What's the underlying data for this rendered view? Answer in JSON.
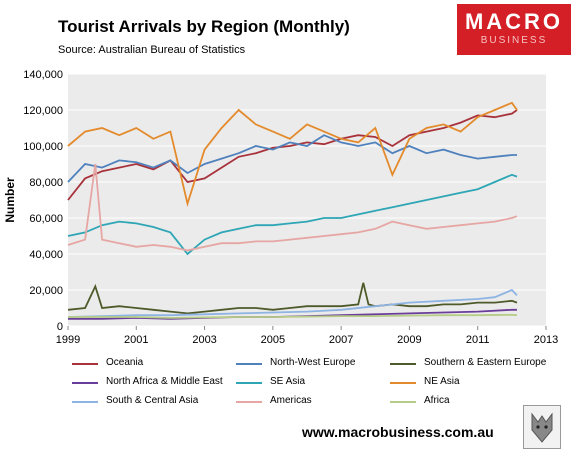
{
  "title": "Tourist Arrivals by Region (Monthly)",
  "source": "Source: Australian Bureau of Statistics",
  "logo": {
    "big": "MACRO",
    "small": "BUSINESS"
  },
  "footer_url": "www.macrobusiness.com.au",
  "colors": {
    "plot_bg": "#ebebeb",
    "gridline": "#ffffff",
    "logo_red": "#d41f26"
  },
  "chart_data": {
    "type": "line",
    "title": "Tourist Arrivals by Region (Monthly)",
    "ylabel": "Number",
    "xlabel": "",
    "xlim": [
      1999,
      2013
    ],
    "ylim": [
      0,
      140000
    ],
    "x_ticks": [
      "1999",
      "2001",
      "2003",
      "2005",
      "2007",
      "2009",
      "2011",
      "2013"
    ],
    "y_ticks": [
      "0",
      "20,000",
      "40,000",
      "60,000",
      "80,000",
      "100,000",
      "120,000",
      "140,000"
    ],
    "grid": true,
    "legend_position": "bottom",
    "series": [
      {
        "name": "Oceania",
        "color": "#a8323b",
        "points": [
          [
            1999.0,
            70000
          ],
          [
            1999.5,
            82000
          ],
          [
            2000.0,
            86000
          ],
          [
            2000.5,
            88000
          ],
          [
            2001.0,
            90000
          ],
          [
            2001.5,
            87000
          ],
          [
            2002.0,
            92000
          ],
          [
            2002.5,
            80000
          ],
          [
            2003.0,
            82000
          ],
          [
            2003.5,
            88000
          ],
          [
            2004.0,
            94000
          ],
          [
            2004.5,
            96000
          ],
          [
            2005.0,
            99000
          ],
          [
            2005.5,
            100000
          ],
          [
            2006.0,
            102000
          ],
          [
            2006.5,
            101000
          ],
          [
            2007.0,
            104000
          ],
          [
            2007.5,
            106000
          ],
          [
            2008.0,
            105000
          ],
          [
            2008.5,
            100000
          ],
          [
            2009.0,
            106000
          ],
          [
            2009.5,
            108000
          ],
          [
            2010.0,
            110000
          ],
          [
            2010.5,
            113000
          ],
          [
            2011.0,
            117000
          ],
          [
            2011.5,
            116000
          ],
          [
            2012.0,
            118000
          ],
          [
            2012.15,
            120000
          ]
        ]
      },
      {
        "name": "North-West Europe",
        "color": "#4f81bd",
        "points": [
          [
            1999.0,
            80000
          ],
          [
            1999.5,
            90000
          ],
          [
            2000.0,
            88000
          ],
          [
            2000.5,
            92000
          ],
          [
            2001.0,
            91000
          ],
          [
            2001.5,
            88000
          ],
          [
            2002.0,
            92000
          ],
          [
            2002.5,
            85000
          ],
          [
            2003.0,
            90000
          ],
          [
            2003.5,
            93000
          ],
          [
            2004.0,
            96000
          ],
          [
            2004.5,
            100000
          ],
          [
            2005.0,
            98000
          ],
          [
            2005.5,
            102000
          ],
          [
            2006.0,
            100000
          ],
          [
            2006.5,
            106000
          ],
          [
            2007.0,
            102000
          ],
          [
            2007.5,
            100000
          ],
          [
            2008.0,
            102000
          ],
          [
            2008.5,
            96000
          ],
          [
            2009.0,
            100000
          ],
          [
            2009.5,
            96000
          ],
          [
            2010.0,
            98000
          ],
          [
            2010.5,
            95000
          ],
          [
            2011.0,
            93000
          ],
          [
            2011.5,
            94000
          ],
          [
            2012.0,
            95000
          ],
          [
            2012.15,
            95000
          ]
        ]
      },
      {
        "name": "Southern & Eastern Europe",
        "color": "#4e5a2a",
        "points": [
          [
            1999.0,
            9000
          ],
          [
            1999.5,
            10000
          ],
          [
            1999.8,
            22000
          ],
          [
            2000.0,
            10000
          ],
          [
            2000.5,
            11000
          ],
          [
            2001.0,
            10000
          ],
          [
            2001.5,
            9000
          ],
          [
            2002.0,
            8000
          ],
          [
            2002.5,
            7000
          ],
          [
            2003.0,
            8000
          ],
          [
            2003.5,
            9000
          ],
          [
            2004.0,
            10000
          ],
          [
            2004.5,
            10000
          ],
          [
            2005.0,
            9000
          ],
          [
            2005.5,
            10000
          ],
          [
            2006.0,
            11000
          ],
          [
            2006.5,
            11000
          ],
          [
            2007.0,
            11000
          ],
          [
            2007.5,
            12000
          ],
          [
            2007.65,
            24000
          ],
          [
            2007.8,
            12000
          ],
          [
            2008.0,
            11000
          ],
          [
            2008.5,
            12000
          ],
          [
            2009.0,
            11000
          ],
          [
            2009.5,
            11000
          ],
          [
            2010.0,
            12000
          ],
          [
            2010.5,
            12000
          ],
          [
            2011.0,
            13000
          ],
          [
            2011.5,
            13000
          ],
          [
            2012.0,
            14000
          ],
          [
            2012.15,
            13000
          ]
        ]
      },
      {
        "name": "North Africa & Middle East",
        "color": "#6a3d9a",
        "points": [
          [
            1999.0,
            4000
          ],
          [
            2000.0,
            4000
          ],
          [
            2001.0,
            4500
          ],
          [
            2002.0,
            4000
          ],
          [
            2003.0,
            4500
          ],
          [
            2004.0,
            5000
          ],
          [
            2005.0,
            5000
          ],
          [
            2006.0,
            5500
          ],
          [
            2007.0,
            6000
          ],
          [
            2008.0,
            6500
          ],
          [
            2009.0,
            7000
          ],
          [
            2010.0,
            7500
          ],
          [
            2011.0,
            8000
          ],
          [
            2012.0,
            9000
          ],
          [
            2012.15,
            9000
          ]
        ]
      },
      {
        "name": "SE Asia",
        "color": "#2ea6b5",
        "points": [
          [
            1999.0,
            50000
          ],
          [
            1999.5,
            52000
          ],
          [
            2000.0,
            56000
          ],
          [
            2000.5,
            58000
          ],
          [
            2001.0,
            57000
          ],
          [
            2001.5,
            55000
          ],
          [
            2002.0,
            52000
          ],
          [
            2002.5,
            40000
          ],
          [
            2003.0,
            48000
          ],
          [
            2003.5,
            52000
          ],
          [
            2004.0,
            54000
          ],
          [
            2004.5,
            56000
          ],
          [
            2005.0,
            56000
          ],
          [
            2005.5,
            57000
          ],
          [
            2006.0,
            58000
          ],
          [
            2006.5,
            60000
          ],
          [
            2007.0,
            60000
          ],
          [
            2007.5,
            62000
          ],
          [
            2008.0,
            64000
          ],
          [
            2008.5,
            66000
          ],
          [
            2009.0,
            68000
          ],
          [
            2009.5,
            70000
          ],
          [
            2010.0,
            72000
          ],
          [
            2010.5,
            74000
          ],
          [
            2011.0,
            76000
          ],
          [
            2011.5,
            80000
          ],
          [
            2012.0,
            84000
          ],
          [
            2012.15,
            83000
          ]
        ]
      },
      {
        "name": "NE Asia",
        "color": "#e38b2c",
        "points": [
          [
            1999.0,
            100000
          ],
          [
            1999.5,
            108000
          ],
          [
            2000.0,
            110000
          ],
          [
            2000.5,
            106000
          ],
          [
            2001.0,
            110000
          ],
          [
            2001.5,
            104000
          ],
          [
            2002.0,
            108000
          ],
          [
            2002.5,
            68000
          ],
          [
            2003.0,
            98000
          ],
          [
            2003.5,
            110000
          ],
          [
            2004.0,
            120000
          ],
          [
            2004.5,
            112000
          ],
          [
            2005.0,
            108000
          ],
          [
            2005.5,
            104000
          ],
          [
            2006.0,
            112000
          ],
          [
            2006.5,
            108000
          ],
          [
            2007.0,
            104000
          ],
          [
            2007.5,
            102000
          ],
          [
            2008.0,
            110000
          ],
          [
            2008.5,
            84000
          ],
          [
            2009.0,
            104000
          ],
          [
            2009.5,
            110000
          ],
          [
            2010.0,
            112000
          ],
          [
            2010.5,
            108000
          ],
          [
            2011.0,
            116000
          ],
          [
            2011.5,
            120000
          ],
          [
            2012.0,
            124000
          ],
          [
            2012.15,
            120000
          ]
        ]
      },
      {
        "name": "South & Central Asia",
        "color": "#8eb4e3",
        "points": [
          [
            1999.0,
            5000
          ],
          [
            2000.0,
            5500
          ],
          [
            2001.0,
            6000
          ],
          [
            2002.0,
            6000
          ],
          [
            2003.0,
            6500
          ],
          [
            2004.0,
            7000
          ],
          [
            2005.0,
            7500
          ],
          [
            2006.0,
            8000
          ],
          [
            2007.0,
            9000
          ],
          [
            2008.0,
            11000
          ],
          [
            2009.0,
            13000
          ],
          [
            2010.0,
            14000
          ],
          [
            2011.0,
            15000
          ],
          [
            2011.5,
            16000
          ],
          [
            2012.0,
            20000
          ],
          [
            2012.15,
            17000
          ]
        ]
      },
      {
        "name": "Americas",
        "color": "#e6a6a3",
        "points": [
          [
            1999.0,
            45000
          ],
          [
            1999.5,
            48000
          ],
          [
            1999.8,
            90000
          ],
          [
            2000.0,
            48000
          ],
          [
            2000.5,
            46000
          ],
          [
            2001.0,
            44000
          ],
          [
            2001.5,
            45000
          ],
          [
            2002.0,
            44000
          ],
          [
            2002.5,
            42000
          ],
          [
            2003.0,
            44000
          ],
          [
            2003.5,
            46000
          ],
          [
            2004.0,
            46000
          ],
          [
            2004.5,
            47000
          ],
          [
            2005.0,
            47000
          ],
          [
            2005.5,
            48000
          ],
          [
            2006.0,
            49000
          ],
          [
            2006.5,
            50000
          ],
          [
            2007.0,
            51000
          ],
          [
            2007.5,
            52000
          ],
          [
            2008.0,
            54000
          ],
          [
            2008.5,
            58000
          ],
          [
            2009.0,
            56000
          ],
          [
            2009.5,
            54000
          ],
          [
            2010.0,
            55000
          ],
          [
            2010.5,
            56000
          ],
          [
            2011.0,
            57000
          ],
          [
            2011.5,
            58000
          ],
          [
            2012.0,
            60000
          ],
          [
            2012.15,
            61000
          ]
        ]
      },
      {
        "name": "Africa",
        "color": "#b7cc86",
        "points": [
          [
            1999.0,
            5000
          ],
          [
            2000.0,
            5000
          ],
          [
            2001.0,
            5000
          ],
          [
            2002.0,
            4500
          ],
          [
            2003.0,
            4800
          ],
          [
            2004.0,
            5000
          ],
          [
            2005.0,
            5000
          ],
          [
            2006.0,
            5200
          ],
          [
            2007.0,
            5500
          ],
          [
            2008.0,
            5500
          ],
          [
            2009.0,
            5800
          ],
          [
            2010.0,
            6000
          ],
          [
            2011.0,
            6000
          ],
          [
            2012.0,
            6200
          ],
          [
            2012.15,
            6000
          ]
        ]
      }
    ]
  }
}
